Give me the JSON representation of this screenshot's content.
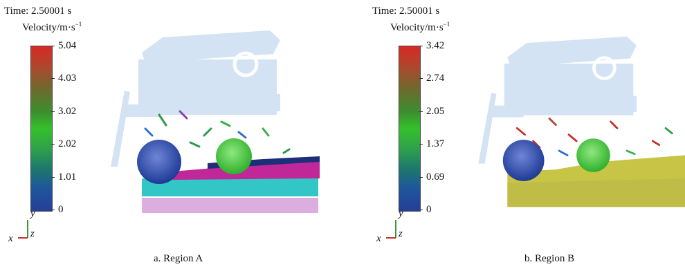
{
  "panels": [
    {
      "time": "Time: 2.50001 s",
      "velocity_label": "Velocity/m·s",
      "velocity_exp": "−1",
      "colorbar_ticks": [
        "5.04",
        "4.03",
        "3.02",
        "2.02",
        "1.01",
        "0"
      ],
      "axes": {
        "y": "y",
        "x": "x",
        "z": "z"
      },
      "caption": "a. Region A"
    },
    {
      "time": "Time: 2.50001 s",
      "velocity_label": "Velocity/m·s",
      "velocity_exp": "−1",
      "colorbar_ticks": [
        "3.42",
        "2.74",
        "2.05",
        "1.37",
        "0.69",
        "0"
      ],
      "axes": {
        "y": "y",
        "x": "x",
        "z": "z"
      },
      "caption": "b. Region B"
    }
  ],
  "colors": {
    "machine_frame": "#cfe0f2",
    "blue_roller": "#2a4fa6",
    "green_roller": "#3cc83a",
    "layer_magenta": "#c0289a",
    "layer_cyan": "#33c6c6",
    "layer_pink": "#dcaee0",
    "soil_yellow": "#c8c445",
    "top_navy": "#1e2f7a"
  }
}
